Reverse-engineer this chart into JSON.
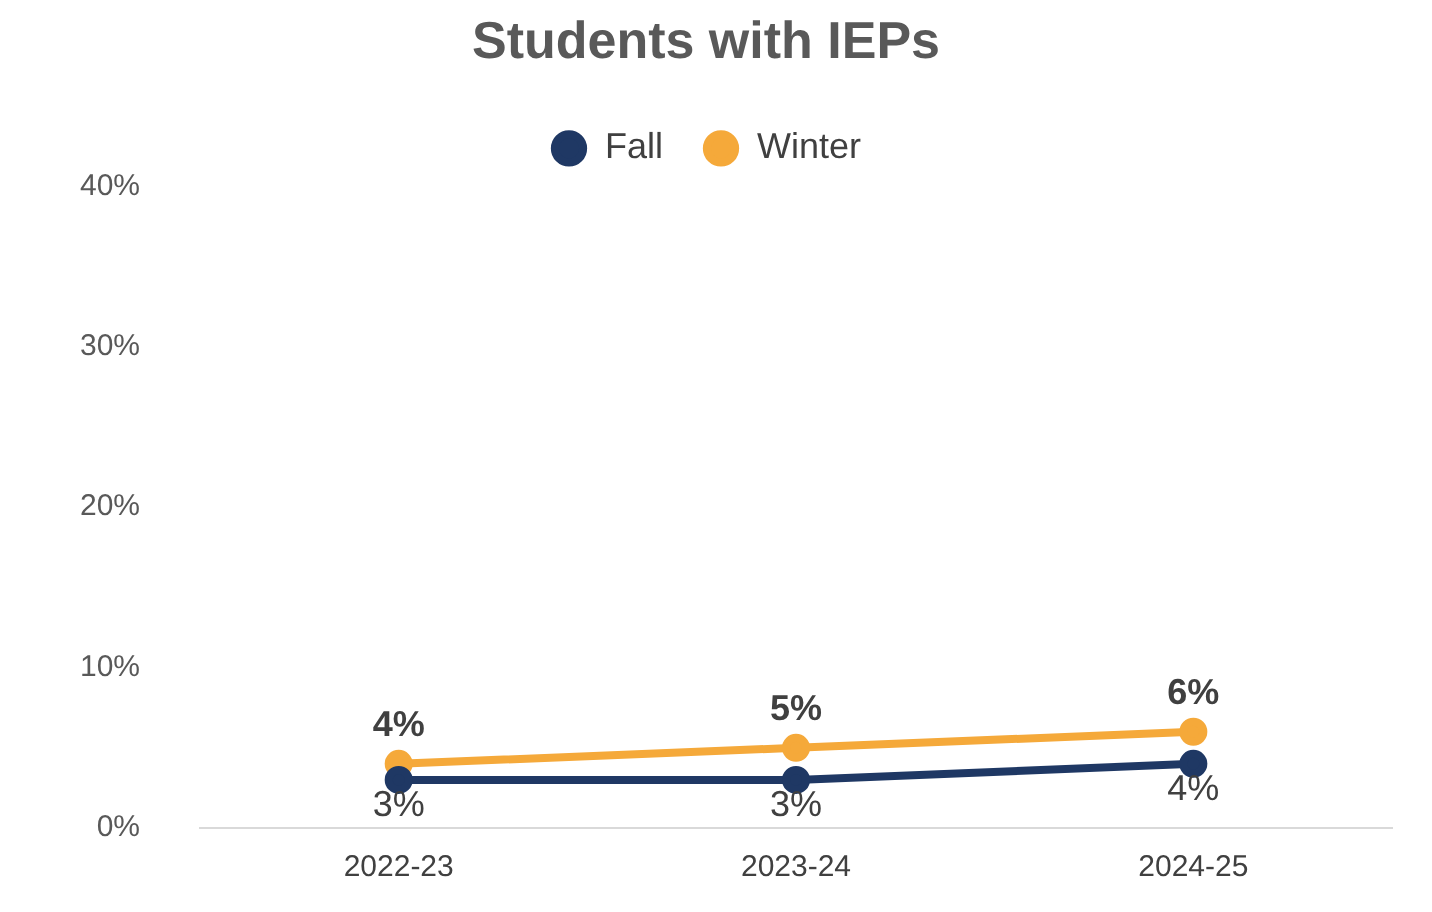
{
  "chart_data": {
    "type": "line",
    "title": "Students with IEPs",
    "categories": [
      "2022-23",
      "2023-24",
      "2024-25"
    ],
    "series": [
      {
        "name": "Fall",
        "color": "#1f3864",
        "values": [
          3,
          3,
          4
        ],
        "value_labels": [
          "3%",
          "3%",
          "4%"
        ]
      },
      {
        "name": "Winter",
        "color": "#f5a93a",
        "values": [
          4,
          5,
          6
        ],
        "value_labels": [
          "4%",
          "5%",
          "6%"
        ]
      }
    ],
    "ylim": [
      0,
      40
    ],
    "yticks": [
      {
        "value": 0,
        "label": "0%"
      },
      {
        "value": 10,
        "label": "10%"
      },
      {
        "value": 20,
        "label": "20%"
      },
      {
        "value": 30,
        "label": "30%"
      },
      {
        "value": 40,
        "label": "40%"
      }
    ],
    "grid": false,
    "legend": "top",
    "marker": "circle",
    "line_style": "solid"
  }
}
